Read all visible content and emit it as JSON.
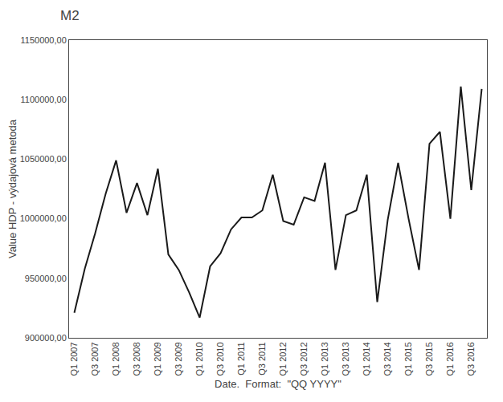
{
  "chart_data": {
    "type": "line",
    "title": "M2",
    "x_label": "Date.  Format:  \"QQ YYYY\"",
    "y_label": "Value HDP - výdajová metoda",
    "categories": [
      "Q1 2007",
      null,
      "Q3 2007",
      null,
      "Q1 2008",
      null,
      "Q3 2008",
      null,
      "Q1 2009",
      null,
      "Q3 2009",
      null,
      "Q1 2010",
      null,
      "Q3 2010",
      null,
      "Q1 2011",
      null,
      "Q3 2011",
      null,
      "Q1 2012",
      null,
      "Q3 2012",
      null,
      "Q1 2013",
      null,
      "Q3 2013",
      null,
      "Q1 2014",
      null,
      "Q3 2014",
      null,
      "Q1 2015",
      null,
      "Q3 2015",
      null,
      "Q1 2016",
      null,
      "Q3 2016",
      null
    ],
    "values": [
      921000,
      958000,
      988000,
      1021000,
      1049000,
      1005000,
      1030000,
      1003000,
      1042000,
      970000,
      957000,
      938000,
      917000,
      960000,
      971000,
      991000,
      1001000,
      1001000,
      1007000,
      1037000,
      998000,
      995000,
      1018000,
      1015000,
      1047000,
      957000,
      1003000,
      1007000,
      1037000,
      930000,
      999000,
      1047000,
      1000000,
      957000,
      1063000,
      1073000,
      1000000,
      1111000,
      1024000,
      1109000
    ],
    "color": "#1a1a1a",
    "ylim": [
      900000,
      1150000
    ],
    "yticks": [
      {
        "value": 900000,
        "label": "900000,00"
      },
      {
        "value": 950000,
        "label": "950000,00"
      },
      {
        "value": 1000000,
        "label": "1000000,00"
      },
      {
        "value": 1050000,
        "label": "1050000,00"
      },
      {
        "value": 1100000,
        "label": "1100000,00"
      },
      {
        "value": 1150000,
        "label": "1150000,00"
      }
    ],
    "grid": false
  }
}
